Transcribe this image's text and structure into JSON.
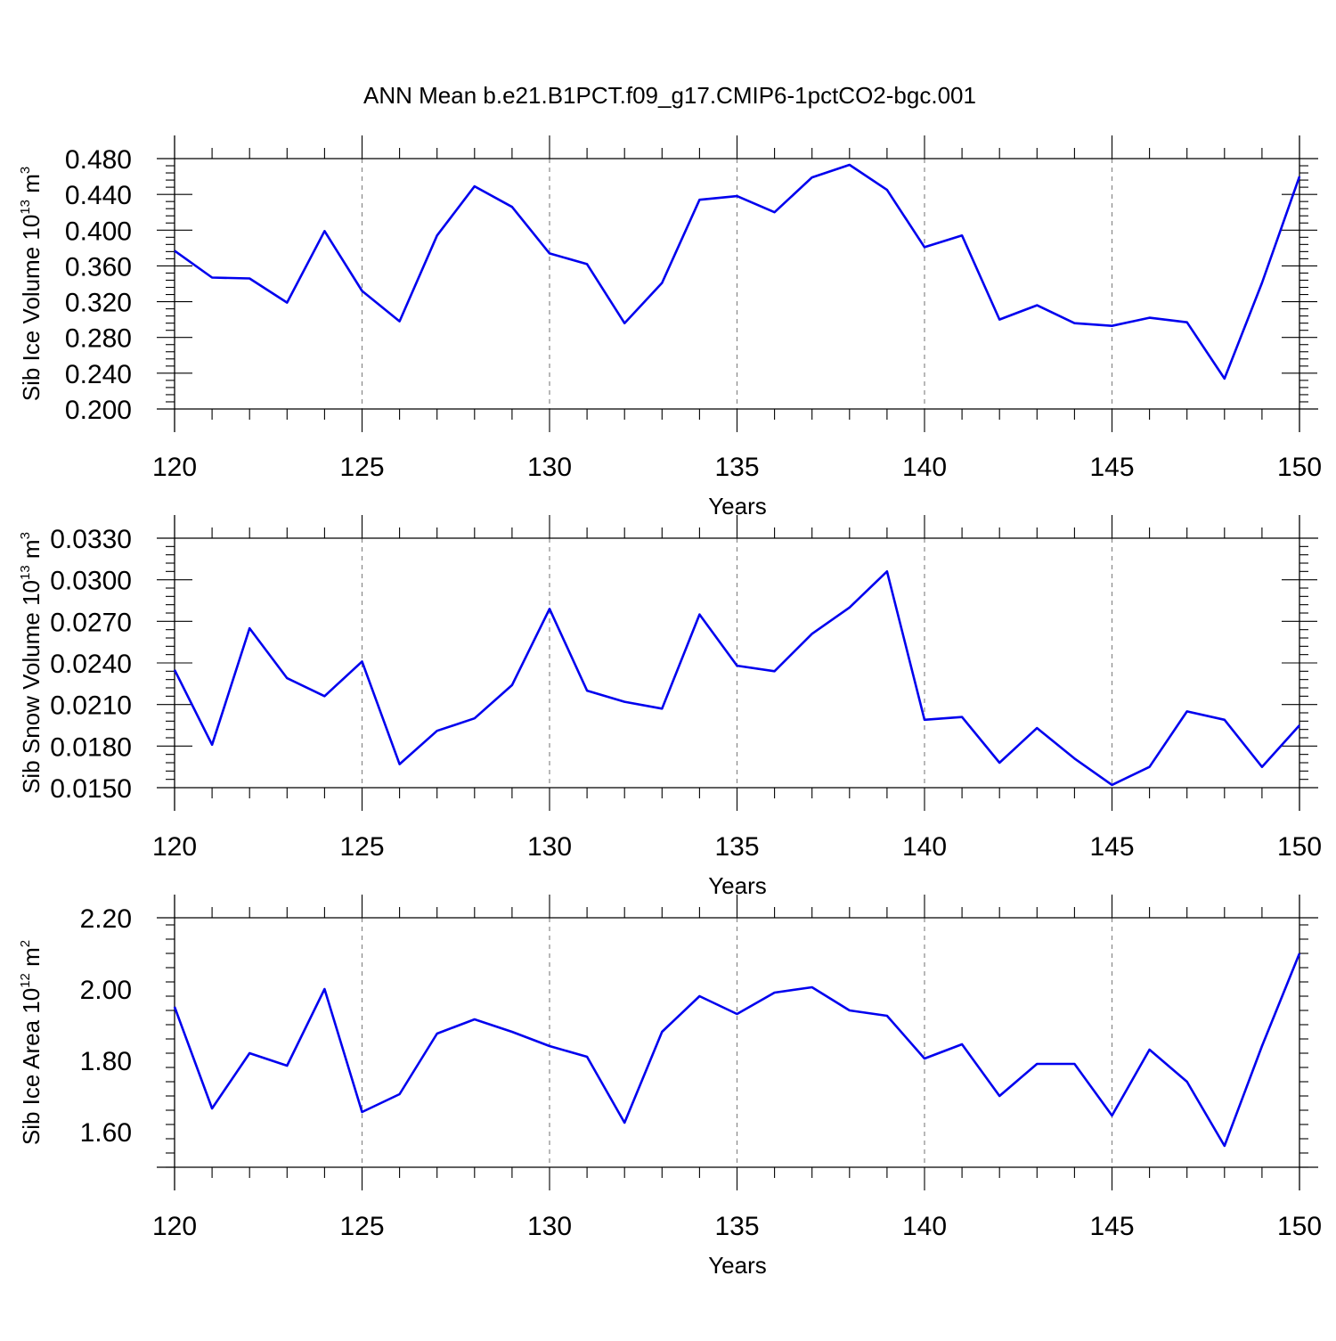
{
  "title": "ANN Mean b.e21.B1PCT.f09_g17.CMIP6-1pctCO2-bgc.001",
  "chart_data": [
    {
      "type": "line",
      "xlabel": "Years",
      "ylabel": {
        "prefix": "Sib Ice Volume 10",
        "exp": "13",
        "unit": " m",
        "unit_exp": "3"
      },
      "xlim": [
        120,
        150
      ],
      "ylim": [
        0.2,
        0.48
      ],
      "yticks": [
        "0.200",
        "0.240",
        "0.280",
        "0.320",
        "0.360",
        "0.400",
        "0.440",
        "0.480"
      ],
      "xticks": [
        "120",
        "125",
        "130",
        "135",
        "140",
        "145",
        "150"
      ],
      "grid": "dashed vertical at major x ticks",
      "line_color": "#0000ee",
      "x": [
        120,
        121,
        122,
        123,
        124,
        125,
        126,
        127,
        128,
        129,
        130,
        131,
        132,
        133,
        134,
        135,
        136,
        137,
        138,
        139,
        140,
        141,
        142,
        143,
        144,
        145,
        146,
        147,
        148,
        149,
        150
      ],
      "values": [
        0.377,
        0.347,
        0.346,
        0.319,
        0.399,
        0.332,
        0.298,
        0.394,
        0.449,
        0.426,
        0.374,
        0.362,
        0.296,
        0.341,
        0.434,
        0.438,
        0.42,
        0.459,
        0.473,
        0.445,
        0.381,
        0.394,
        0.3,
        0.316,
        0.296,
        0.293,
        0.302,
        0.297,
        0.234,
        0.341,
        0.46
      ]
    },
    {
      "type": "line",
      "xlabel": "Years",
      "ylabel": {
        "prefix": "Sib Snow Volume 10",
        "exp": "13",
        "unit": " m",
        "unit_exp": "3"
      },
      "xlim": [
        120,
        150
      ],
      "ylim": [
        0.015,
        0.033
      ],
      "yticks": [
        "0.0150",
        "0.0180",
        "0.0210",
        "0.0240",
        "0.0270",
        "0.0300",
        "0.0330"
      ],
      "xticks": [
        "120",
        "125",
        "130",
        "135",
        "140",
        "145",
        "150"
      ],
      "grid": "dashed vertical at major x ticks",
      "line_color": "#0000ee",
      "x": [
        120,
        121,
        122,
        123,
        124,
        125,
        126,
        127,
        128,
        129,
        130,
        131,
        132,
        133,
        134,
        135,
        136,
        137,
        138,
        139,
        140,
        141,
        142,
        143,
        144,
        145,
        146,
        147,
        148,
        149,
        150
      ],
      "values": [
        0.0235,
        0.0181,
        0.0265,
        0.0229,
        0.0216,
        0.0241,
        0.0167,
        0.0191,
        0.02,
        0.0224,
        0.0279,
        0.022,
        0.0212,
        0.0207,
        0.0275,
        0.0238,
        0.0234,
        0.0261,
        0.028,
        0.0306,
        0.0199,
        0.0201,
        0.0168,
        0.0193,
        0.0171,
        0.0152,
        0.0165,
        0.0205,
        0.0199,
        0.0165,
        0.0195
      ]
    },
    {
      "type": "line",
      "xlabel": "Years",
      "ylabel": {
        "prefix": "Sib Ice Area 10",
        "exp": "12",
        "unit": " m",
        "unit_exp": "2"
      },
      "xlim": [
        120,
        150
      ],
      "ylim": [
        1.5,
        2.2
      ],
      "yticks": [
        "1.60",
        "1.80",
        "2.00",
        "2.20"
      ],
      "xticks": [
        "120",
        "125",
        "130",
        "135",
        "140",
        "145",
        "150"
      ],
      "grid": "dashed vertical at major x ticks",
      "line_color": "#0000ee",
      "x": [
        120,
        121,
        122,
        123,
        124,
        125,
        126,
        127,
        128,
        129,
        130,
        131,
        132,
        133,
        134,
        135,
        136,
        137,
        138,
        139,
        140,
        141,
        142,
        143,
        144,
        145,
        146,
        147,
        148,
        149,
        150
      ],
      "values": [
        1.95,
        1.665,
        1.82,
        1.785,
        2.0,
        1.655,
        1.705,
        1.875,
        1.915,
        1.88,
        1.84,
        1.81,
        1.625,
        1.88,
        1.98,
        1.93,
        1.99,
        2.005,
        1.94,
        1.925,
        1.805,
        1.845,
        1.7,
        1.79,
        1.79,
        1.645,
        1.83,
        1.74,
        1.56,
        1.84,
        2.1
      ]
    }
  ]
}
